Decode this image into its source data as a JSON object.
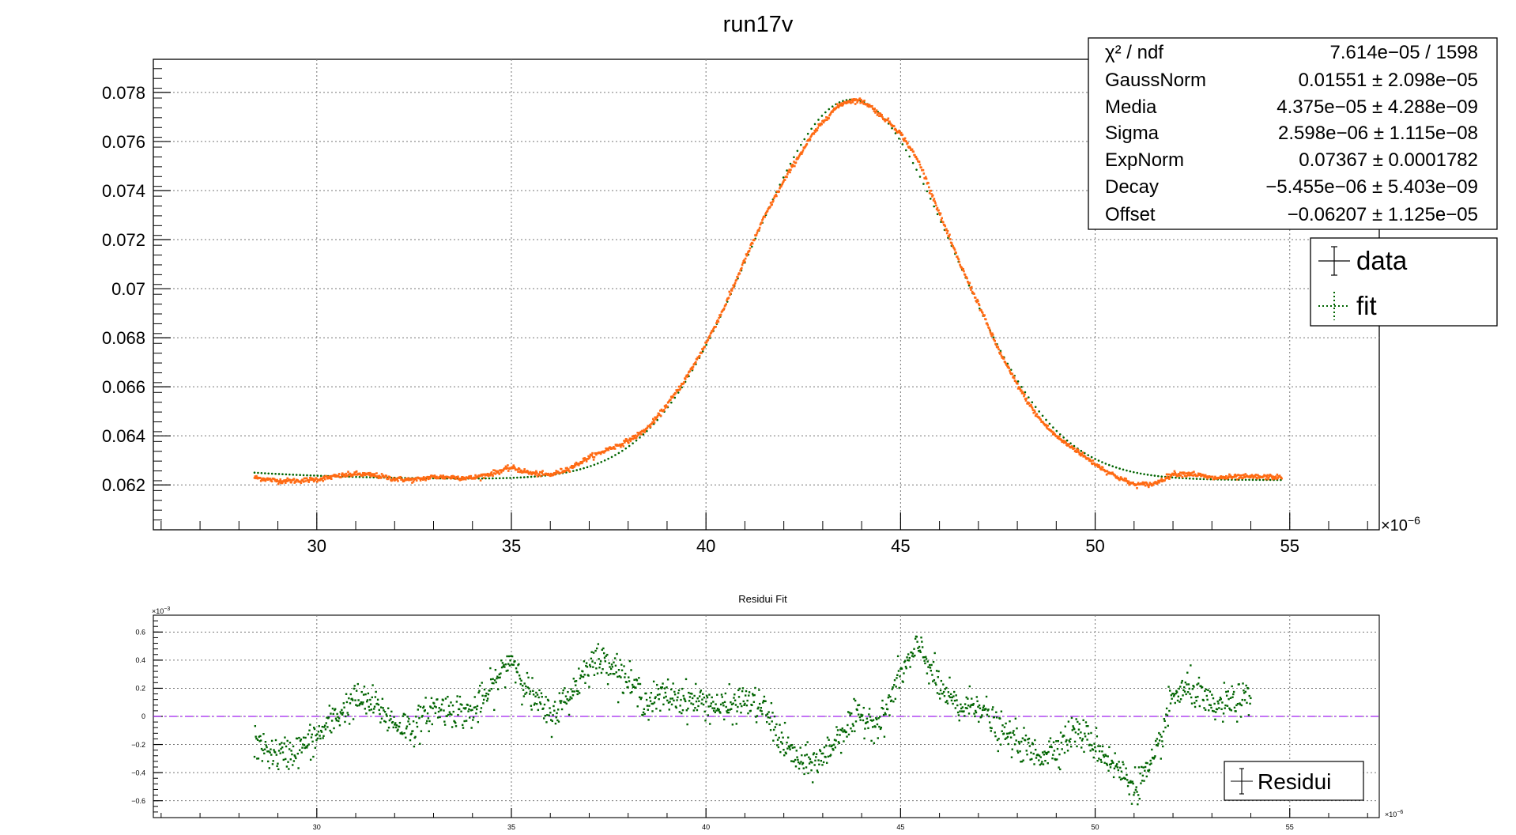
{
  "chart_data": [
    {
      "type": "scatter",
      "title": "run17v",
      "x_exponent_label": "×10",
      "x_exponent_power": "−6",
      "xlim": [
        25.8,
        57.3
      ],
      "ylim": [
        0.06017,
        0.07935
      ],
      "x_ticks": [
        30,
        35,
        40,
        45,
        50,
        55
      ],
      "x_tick_labels": [
        "30",
        "35",
        "40",
        "45",
        "50",
        "55"
      ],
      "y_ticks": [
        0.062,
        0.064,
        0.066,
        0.068,
        0.07,
        0.072,
        0.074,
        0.076,
        0.078
      ],
      "y_tick_labels": [
        "0.062",
        "0.064",
        "0.066",
        "0.068",
        "0.07",
        "0.072",
        "0.074",
        "0.076",
        "0.078"
      ],
      "grid": true,
      "series": [
        {
          "name": "data",
          "color": "#ff6a13",
          "marker": "dot",
          "x_range": [
            28.4,
            54.8
          ]
        },
        {
          "name": "fit",
          "color": "#006400",
          "marker": "dotted-line",
          "x_range": [
            28.4,
            54.8
          ]
        }
      ],
      "fit_function": {
        "GaussNorm": 0.01551,
        "Media": 43.75,
        "Sigma": 2.598,
        "ExpNorm": 0.07367,
        "Decay": -5.455,
        "Offset": -0.06207
      },
      "stats_box": {
        "position": "top-right",
        "rows": [
          {
            "label": "χ² / ndf",
            "value": "7.614e−05 / 1598"
          },
          {
            "label": "GaussNorm",
            "value": "0.01551 ± 2.098e−05"
          },
          {
            "label": "Media",
            "value": "4.375e−05 ± 4.288e−09"
          },
          {
            "label": "Sigma",
            "value": "2.598e−06 ± 1.115e−08"
          },
          {
            "label": "ExpNorm",
            "value": "0.07367 ± 0.0001782"
          },
          {
            "label": "Decay",
            "value": "−5.455e−06 ± 5.403e−09"
          },
          {
            "label": "Offset",
            "value": "−0.06207 ± 1.125e−05"
          }
        ]
      },
      "legend": {
        "position": "top-right",
        "entries": [
          {
            "label": "data"
          },
          {
            "label": "fit"
          }
        ]
      }
    },
    {
      "type": "scatter",
      "title": "Residui Fit",
      "x_exponent_label": "×10",
      "x_exponent_power": "−6",
      "y_exponent_label": "×10",
      "y_exponent_power": "−3",
      "xlim": [
        25.8,
        57.3
      ],
      "ylim": [
        -0.72,
        0.72
      ],
      "x_ticks": [
        30,
        35,
        40,
        45,
        50,
        55
      ],
      "x_tick_labels": [
        "30",
        "35",
        "40",
        "45",
        "50",
        "55"
      ],
      "y_ticks": [
        -0.6,
        -0.4,
        -0.2,
        0,
        0.2,
        0.4,
        0.6
      ],
      "y_tick_labels": [
        "−0.6",
        "−0.4",
        "−0.2",
        "0",
        "0.2",
        "0.4",
        "0.6"
      ],
      "grid": true,
      "zero_line_color": "#a020f0",
      "series": [
        {
          "name": "Residui",
          "color": "#006400",
          "x": [
            28.4,
            29.0,
            29.5,
            30.0,
            30.5,
            31.0,
            31.5,
            32.0,
            32.5,
            33.0,
            33.5,
            34.0,
            34.5,
            35.0,
            35.5,
            36.0,
            36.5,
            37.0,
            37.5,
            38.0,
            38.5,
            39.0,
            39.5,
            40.0,
            40.5,
            41.0,
            41.5,
            42.0,
            42.5,
            43.0,
            43.5,
            44.0,
            44.5,
            45.0,
            45.5,
            46.0,
            46.5,
            47.0,
            47.5,
            48.0,
            48.5,
            49.0,
            49.5,
            50.0,
            50.5,
            51.0,
            51.5,
            52.0,
            52.5,
            53.0,
            53.5,
            54.0
          ],
          "y": [
            -0.2,
            -0.28,
            -0.24,
            -0.15,
            0.0,
            0.12,
            0.08,
            -0.05,
            -0.08,
            0.06,
            0.05,
            0.02,
            0.2,
            0.42,
            0.15,
            0.0,
            0.15,
            0.38,
            0.4,
            0.25,
            0.1,
            0.15,
            0.12,
            0.1,
            0.05,
            0.12,
            0.05,
            -0.2,
            -0.35,
            -0.3,
            -0.1,
            0.0,
            -0.05,
            0.3,
            0.5,
            0.2,
            0.05,
            0.1,
            -0.1,
            -0.18,
            -0.28,
            -0.22,
            -0.1,
            -0.2,
            -0.35,
            -0.5,
            -0.35,
            0.15,
            0.2,
            0.05,
            0.1,
            0.12
          ]
        }
      ],
      "legend": {
        "position": "bottom-right",
        "entries": [
          {
            "label": "Residui"
          }
        ]
      }
    }
  ]
}
